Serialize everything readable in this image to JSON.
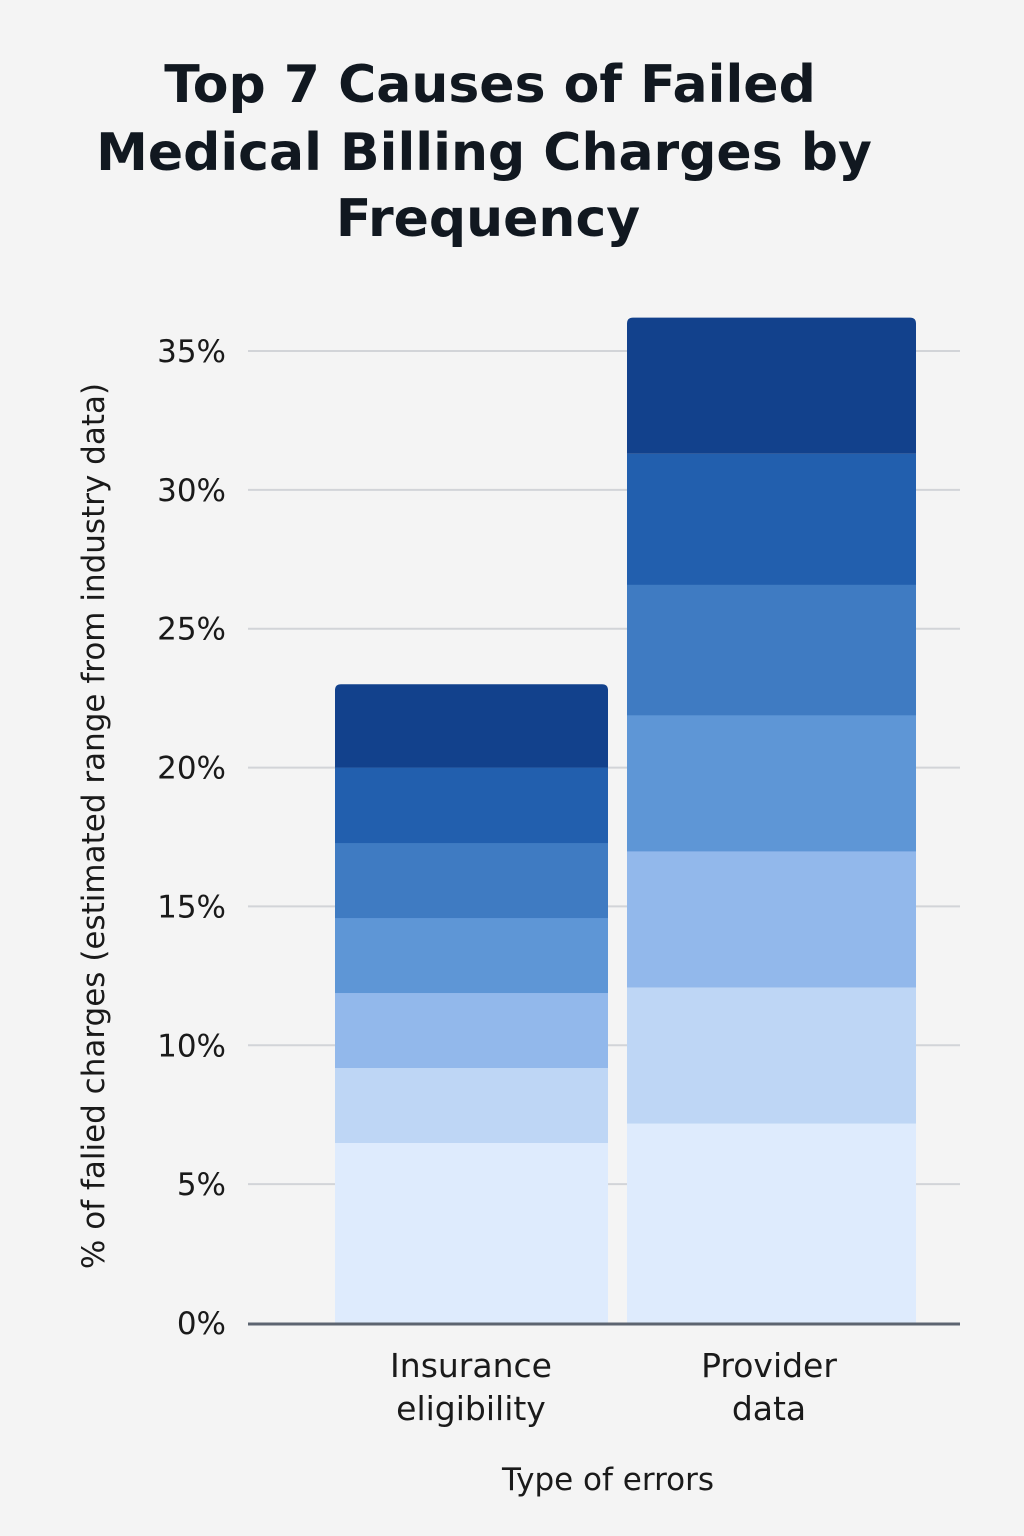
{
  "chart_data": {
    "type": "bar",
    "stacked": true,
    "title_lines": [
      "Top 7 Causes of Failed",
      "Medical Billing Charges by",
      "Frequency"
    ],
    "title": "Top 7 Causes of Failed Medical Billing Charges by Frequency",
    "xlabel": "Type of errors",
    "ylabel": "% of falied charges (estimated range from industry data)",
    "categories": [
      [
        "Insurance",
        "eligibility"
      ],
      [
        "Provider",
        "data"
      ]
    ],
    "ylim": [
      0,
      35
    ],
    "yticks": [
      0,
      5,
      10,
      15,
      20,
      25,
      30,
      35
    ],
    "ytick_labels": [
      "0%",
      "5%",
      "10%",
      "15%",
      "20%",
      "25%",
      "30%",
      "35%"
    ],
    "grid": true,
    "series": [
      {
        "color": "#deebfd",
        "values": [
          6.5,
          7.2
        ]
      },
      {
        "color": "#bed6f5",
        "values": [
          2.7,
          4.9
        ]
      },
      {
        "color": "#92b8eb",
        "values": [
          2.7,
          4.9
        ]
      },
      {
        "color": "#5e96d6",
        "values": [
          2.7,
          4.9
        ]
      },
      {
        "color": "#3f7bc2",
        "values": [
          2.7,
          4.7
        ]
      },
      {
        "color": "#225fae",
        "values": [
          2.7,
          4.7
        ]
      },
      {
        "color": "#12418c",
        "values": [
          3.0,
          4.9
        ]
      }
    ],
    "colors": {
      "grid": "#d2d4d8",
      "axis": "#5c6470"
    }
  }
}
